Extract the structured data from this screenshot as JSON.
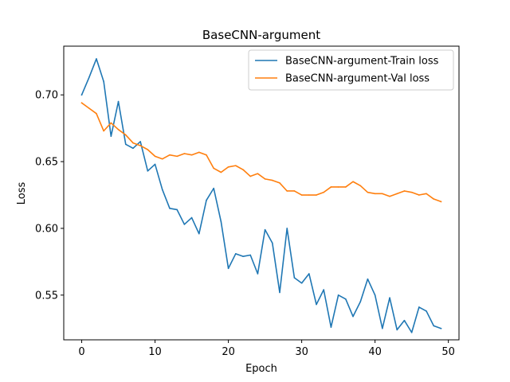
{
  "chart_data": {
    "type": "line",
    "title": "BaseCNN-argument",
    "xlabel": "Epoch",
    "ylabel": "Loss",
    "xlim": [
      -2.45,
      51.45
    ],
    "ylim": [
      0.5165,
      0.7365
    ],
    "xticks": [
      0,
      10,
      20,
      30,
      40,
      50
    ],
    "xtick_labels": [
      "0",
      "10",
      "20",
      "30",
      "40",
      "50"
    ],
    "yticks": [
      0.55,
      0.6,
      0.65,
      0.7
    ],
    "ytick_labels": [
      "0.55",
      "0.60",
      "0.65",
      "0.70"
    ],
    "grid": false,
    "legend_position": "top-right",
    "x": [
      0,
      1,
      2,
      3,
      4,
      5,
      6,
      7,
      8,
      9,
      10,
      11,
      12,
      13,
      14,
      15,
      16,
      17,
      18,
      19,
      20,
      21,
      22,
      23,
      24,
      25,
      26,
      27,
      28,
      29,
      30,
      31,
      32,
      33,
      34,
      35,
      36,
      37,
      38,
      39,
      40,
      41,
      42,
      43,
      44,
      45,
      46,
      47,
      48,
      49
    ],
    "series": [
      {
        "name": "BaseCNN-argument-Train loss",
        "color": "#1f77b4",
        "values": [
          0.7,
          0.713,
          0.727,
          0.71,
          0.669,
          0.695,
          0.663,
          0.66,
          0.665,
          0.643,
          0.648,
          0.629,
          0.615,
          0.614,
          0.603,
          0.608,
          0.596,
          0.621,
          0.63,
          0.605,
          0.57,
          0.581,
          0.579,
          0.58,
          0.566,
          0.599,
          0.589,
          0.552,
          0.6,
          0.563,
          0.559,
          0.566,
          0.543,
          0.554,
          0.526,
          0.55,
          0.547,
          0.534,
          0.545,
          0.562,
          0.55,
          0.525,
          0.548,
          0.524,
          0.531,
          0.522,
          0.541,
          0.538,
          0.527,
          0.525
        ]
      },
      {
        "name": "BaseCNN-argument-Val loss",
        "color": "#ff7f0e",
        "values": [
          0.694,
          0.69,
          0.686,
          0.673,
          0.679,
          0.674,
          0.67,
          0.664,
          0.662,
          0.659,
          0.654,
          0.652,
          0.655,
          0.654,
          0.656,
          0.655,
          0.657,
          0.655,
          0.645,
          0.642,
          0.646,
          0.647,
          0.644,
          0.639,
          0.641,
          0.637,
          0.636,
          0.634,
          0.628,
          0.628,
          0.625,
          0.625,
          0.625,
          0.627,
          0.631,
          0.631,
          0.631,
          0.635,
          0.632,
          0.627,
          0.626,
          0.626,
          0.624,
          0.626,
          0.628,
          0.627,
          0.625,
          0.626,
          0.622,
          0.62
        ]
      }
    ]
  }
}
